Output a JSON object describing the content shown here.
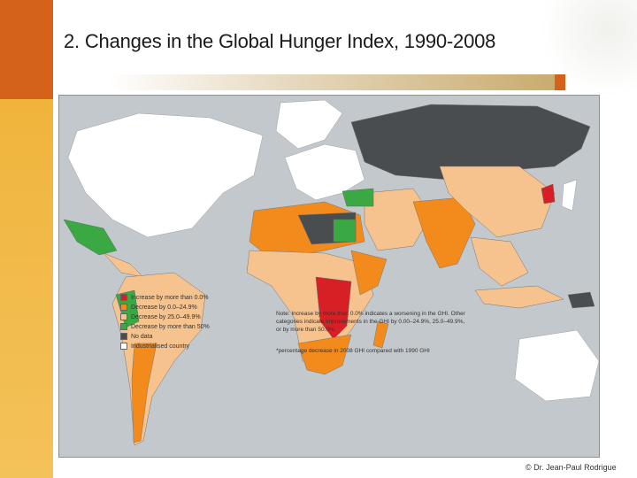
{
  "header": {
    "title": "2. Changes in the Global Hunger Index, 1990-2008"
  },
  "colors": {
    "increase": "#d71f26",
    "decrease_low": "#f28a1c",
    "decrease_mid": "#f6c28e",
    "decrease_high": "#3aa843",
    "no_data": "#4a4d50",
    "industrialised": "#ffffff",
    "ocean": "#c3c8cc",
    "accent": "#d4621a"
  },
  "legend": {
    "items": [
      {
        "label": "Increase by more than 0.0%",
        "color": "#d71f26"
      },
      {
        "label": "Decrease by 0.0–24.9%",
        "color": "#f28a1c"
      },
      {
        "label": "Decrease by 25.0–49.9%",
        "color": "#f6c28e"
      },
      {
        "label": "Decrease by more than 50%",
        "color": "#3aa843"
      },
      {
        "label": "No data",
        "color": "#4a4d50"
      },
      {
        "label": "Industrialised country",
        "color": "#ffffff"
      }
    ]
  },
  "note": {
    "text": "Note: Increase by more than 0.0% indicates a worsening in the GHI. Other categories indicate improvements in the GHI by 0.00–24.9%, 25.0–49.9%, or by more than 50.0%.",
    "footnote": "*percentage decrease in 2008 GHI compared with 1990 GHI"
  },
  "footer": {
    "credit": "© Dr. Jean-Paul Rodrigue"
  }
}
